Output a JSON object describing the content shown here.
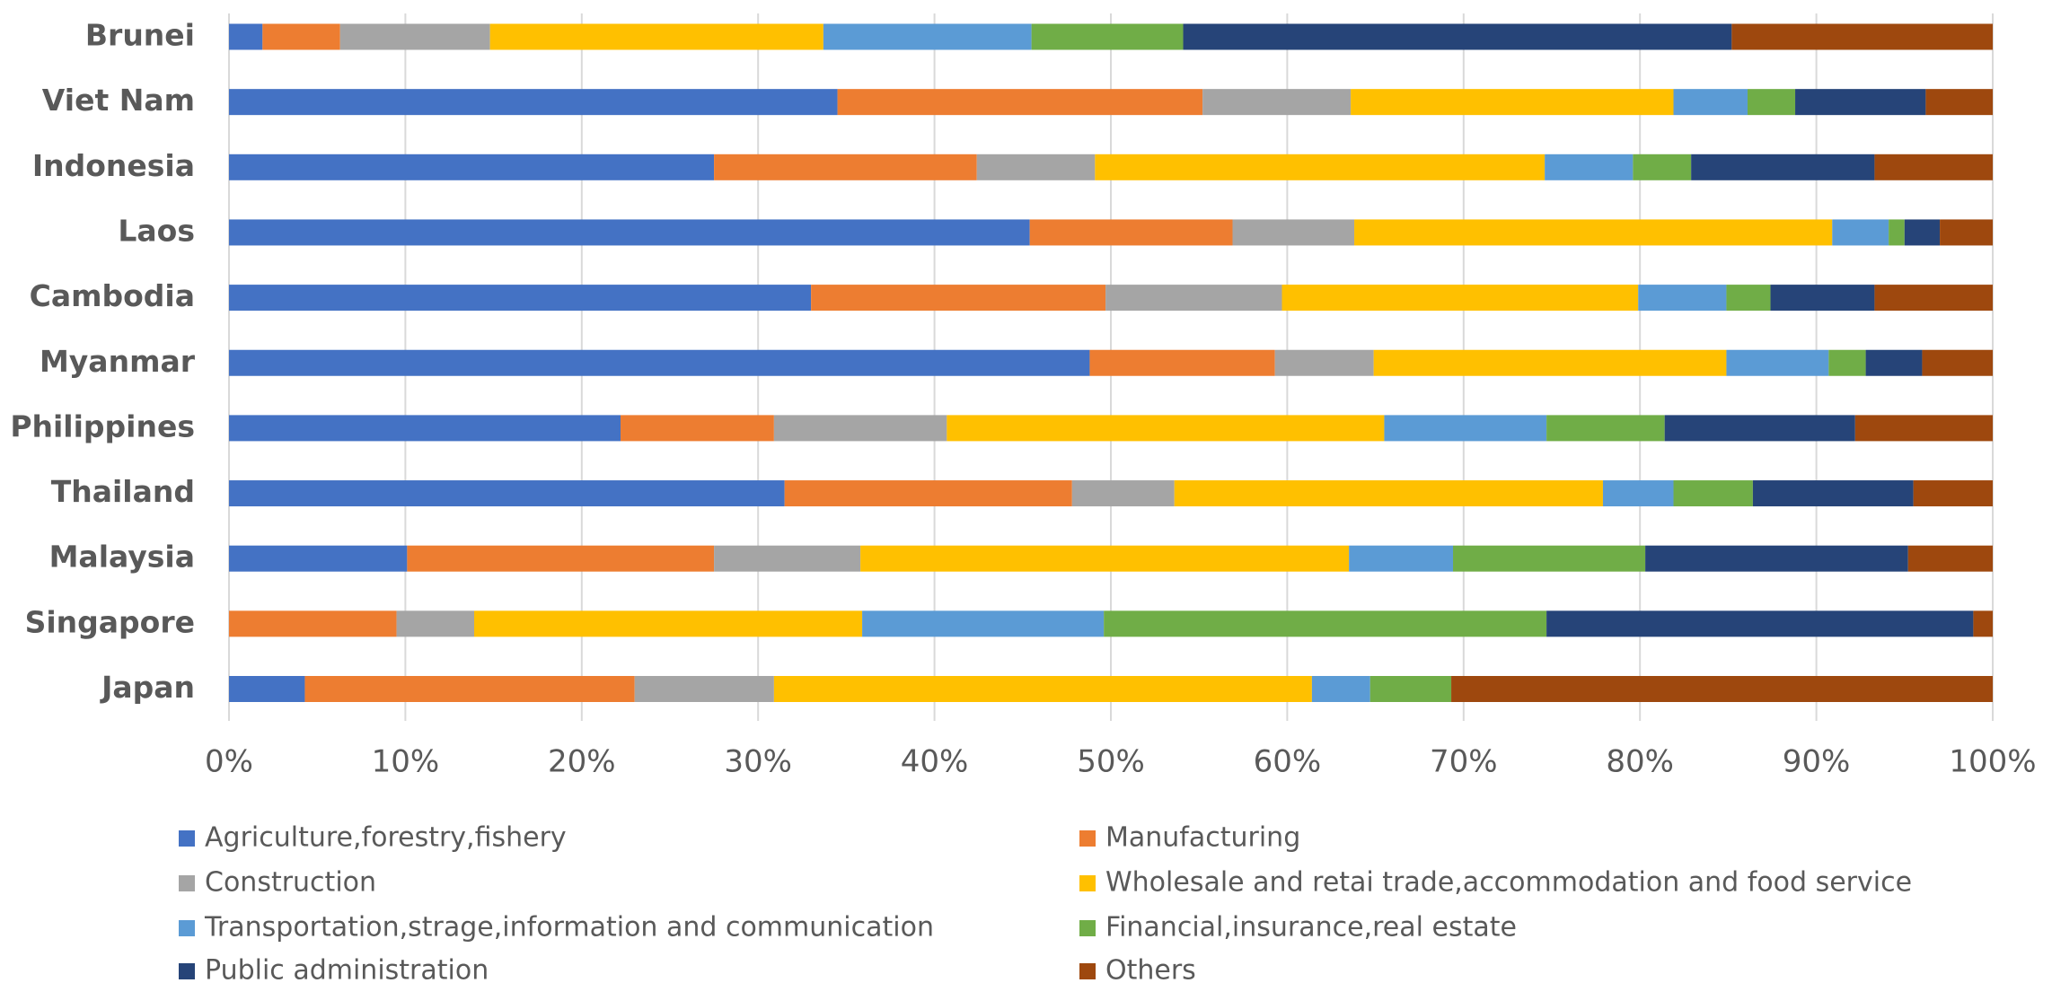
{
  "chart_data": {
    "type": "stacked_barh",
    "categories": [
      "Brunei",
      "Viet Nam",
      "Indonesia",
      "Laos",
      "Cambodia",
      "Myanmar",
      "Philippines",
      "Thailand",
      "Malaysia",
      "Singapore",
      "Japan"
    ],
    "series": [
      {
        "name": "Agriculture,forestry,fishery",
        "color": "#4472c4",
        "values": [
          1.9,
          34.5,
          27.5,
          45.4,
          33.0,
          48.8,
          22.2,
          31.5,
          10.1,
          0,
          4.3
        ]
      },
      {
        "name": "Manufacturing",
        "color": "#ed7d31",
        "values": [
          4.4,
          20.7,
          14.9,
          11.5,
          16.7,
          10.5,
          8.7,
          16.3,
          17.4,
          9.5,
          18.7
        ]
      },
      {
        "name": "Construction",
        "color": "#a5a5a5",
        "values": [
          8.5,
          8.4,
          6.7,
          6.9,
          10.0,
          5.6,
          9.8,
          5.8,
          8.3,
          4.4,
          7.9
        ]
      },
      {
        "name": "Wholesale and retai trade,accommodation and food service",
        "color": "#ffc000",
        "values": [
          18.9,
          18.3,
          25.5,
          27.1,
          20.2,
          20.0,
          24.8,
          24.3,
          27.7,
          22.0,
          30.5
        ]
      },
      {
        "name": "Transportation,strage,information and communication",
        "color": "#5b9bd5",
        "values": [
          11.8,
          4.2,
          5.0,
          3.2,
          5.0,
          5.8,
          9.2,
          4.0,
          5.9,
          13.7,
          3.3
        ]
      },
      {
        "name": "Financial,insurance,real estate",
        "color": "#70ad47",
        "values": [
          8.6,
          2.7,
          3.3,
          0.9,
          2.5,
          2.1,
          6.7,
          4.5,
          10.9,
          25.1,
          4.6
        ]
      },
      {
        "name": "Public administration",
        "color": "#264478",
        "values": [
          31.1,
          7.4,
          10.4,
          2.0,
          5.9,
          3.2,
          10.8,
          9.1,
          14.9,
          24.2,
          0
        ]
      },
      {
        "name": "Others",
        "color": "#9e480e",
        "values": [
          14.8,
          3.8,
          6.7,
          3.0,
          6.7,
          4.0,
          7.8,
          4.5,
          4.8,
          1.1,
          30.7
        ]
      }
    ],
    "xlim": [
      0,
      100
    ],
    "xticks": [
      {
        "value": 0,
        "label": "0%"
      },
      {
        "value": 10,
        "label": "10%"
      },
      {
        "value": 20,
        "label": "20%"
      },
      {
        "value": 30,
        "label": "30%"
      },
      {
        "value": 40,
        "label": "40%"
      },
      {
        "value": 50,
        "label": "50%"
      },
      {
        "value": 60,
        "label": "60%"
      },
      {
        "value": 70,
        "label": "70%"
      },
      {
        "value": 80,
        "label": "80%"
      },
      {
        "value": 90,
        "label": "90%"
      },
      {
        "value": 100,
        "label": "100%"
      }
    ],
    "grid": true,
    "legend": "bottom"
  }
}
